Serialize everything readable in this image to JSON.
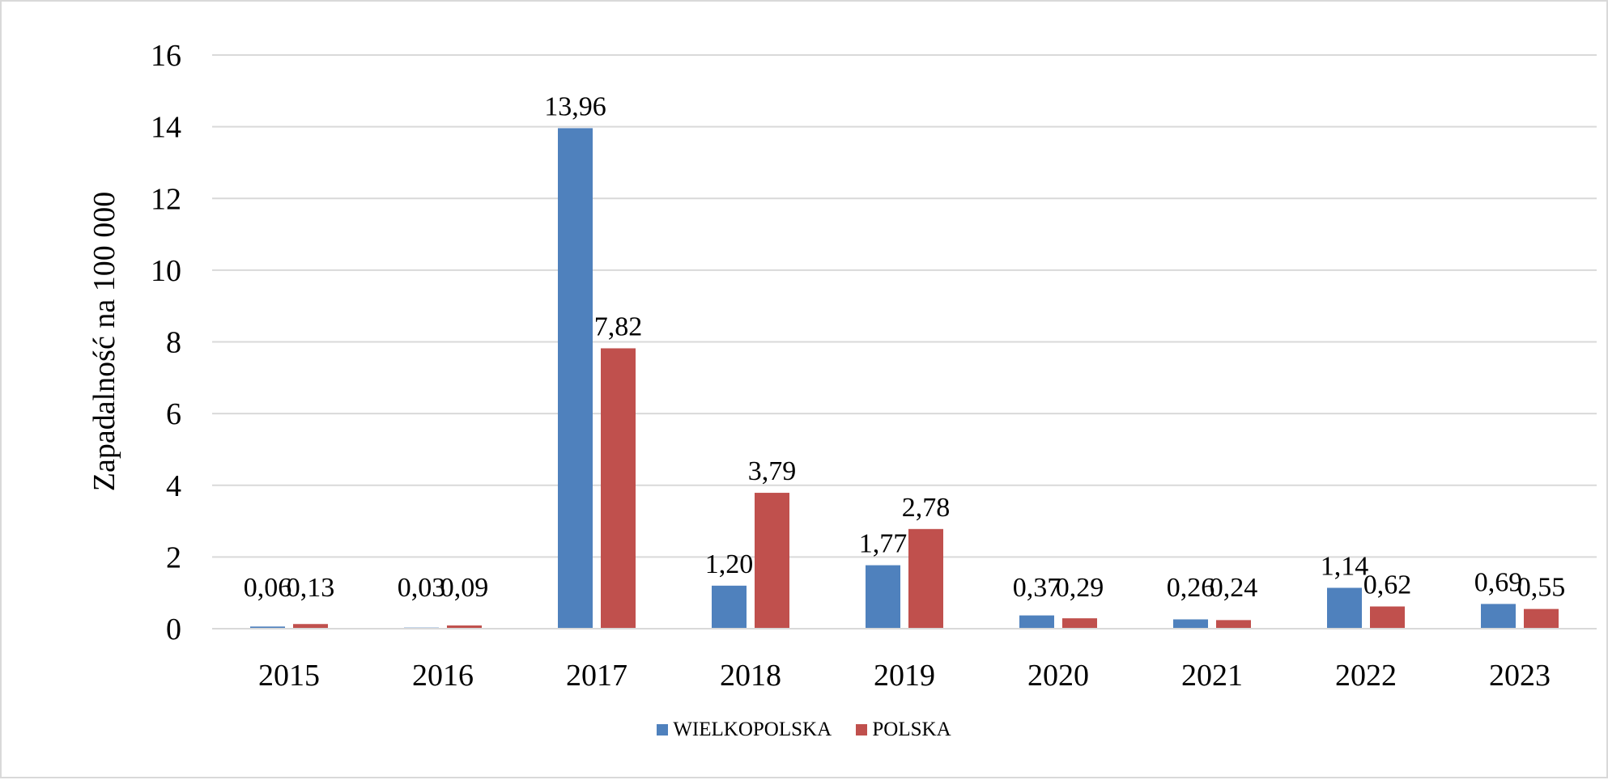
{
  "chart_data": {
    "type": "bar",
    "title": "",
    "xlabel": "",
    "ylabel": "Zapadalność na 100 000",
    "ylim": [
      0,
      16
    ],
    "yticks": [
      "0",
      "2",
      "4",
      "6",
      "8",
      "10",
      "12",
      "14",
      "16"
    ],
    "grid": true,
    "legend_position": "bottom",
    "categories": [
      "2015",
      "2016",
      "2017",
      "2018",
      "2019",
      "2020",
      "2021",
      "2022",
      "2023"
    ],
    "series": [
      {
        "name": "WIELKOPOLSKA",
        "color": "#4f81bd",
        "values": [
          0.06,
          0.03,
          13.96,
          1.2,
          1.77,
          0.37,
          0.26,
          1.14,
          0.69
        ],
        "labels": [
          "0,06",
          "0,03",
          "13,96",
          "1,20",
          "1,77",
          "0,37",
          "0,26",
          "1,14",
          "0,69"
        ]
      },
      {
        "name": "POLSKA",
        "color": "#c0504d",
        "values": [
          0.13,
          0.09,
          7.82,
          3.79,
          2.78,
          0.29,
          0.24,
          0.62,
          0.55
        ],
        "labels": [
          "0,13",
          "0,09",
          "7,82",
          "3,79",
          "2,78",
          "0,29",
          "0,24",
          "0,62",
          "0,55"
        ]
      }
    ]
  }
}
